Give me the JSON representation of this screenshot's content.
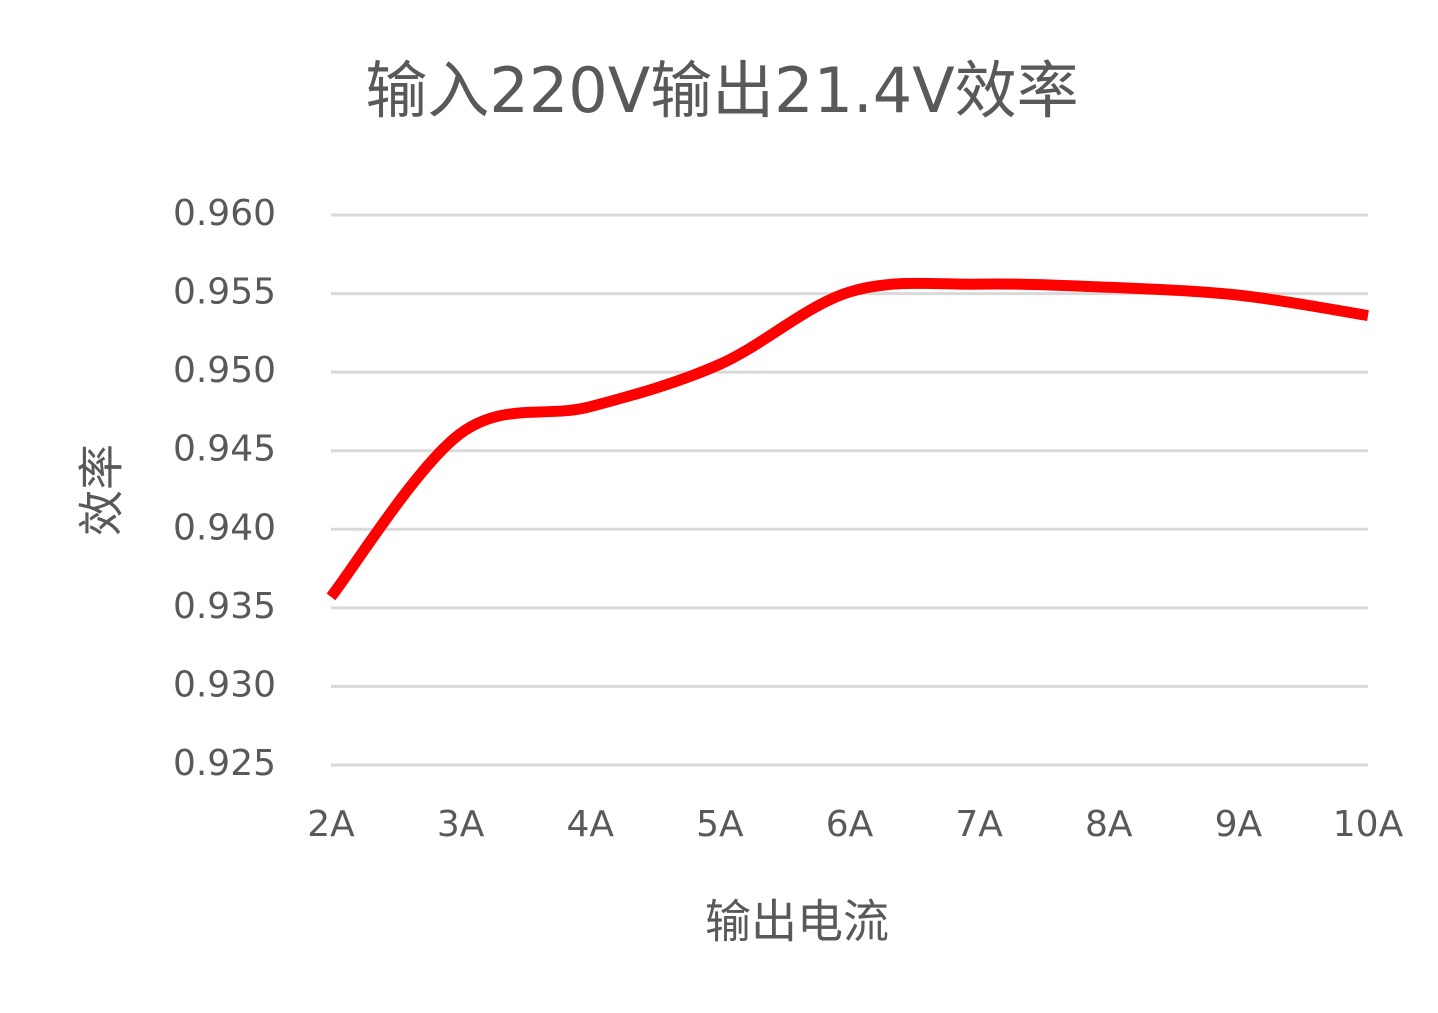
{
  "chart_data": {
    "type": "line",
    "title": "输入220V输出21.4V效率",
    "x_label": "输出电流",
    "y_label": "效率",
    "categories": [
      "2A",
      "3A",
      "4A",
      "5A",
      "6A",
      "7A",
      "8A",
      "9A",
      "10A"
    ],
    "values": [
      0.9357,
      0.9461,
      0.9478,
      0.9505,
      0.9551,
      0.9556,
      0.9554,
      0.9549,
      0.9536
    ],
    "color": "#ff0000",
    "ylim": [
      0.925,
      0.96
    ],
    "yticks": [
      0.925,
      {
        "value": 0.93,
        "label": "0.930"
      },
      0.935,
      {
        "value": 0.94,
        "label": "0.940"
      },
      0.945,
      {
        "value": 0.95,
        "label": "0.950"
      },
      0.955,
      {
        "value": 0.96,
        "label": "0.960"
      }
    ],
    "grid": true,
    "smooth": true
  }
}
